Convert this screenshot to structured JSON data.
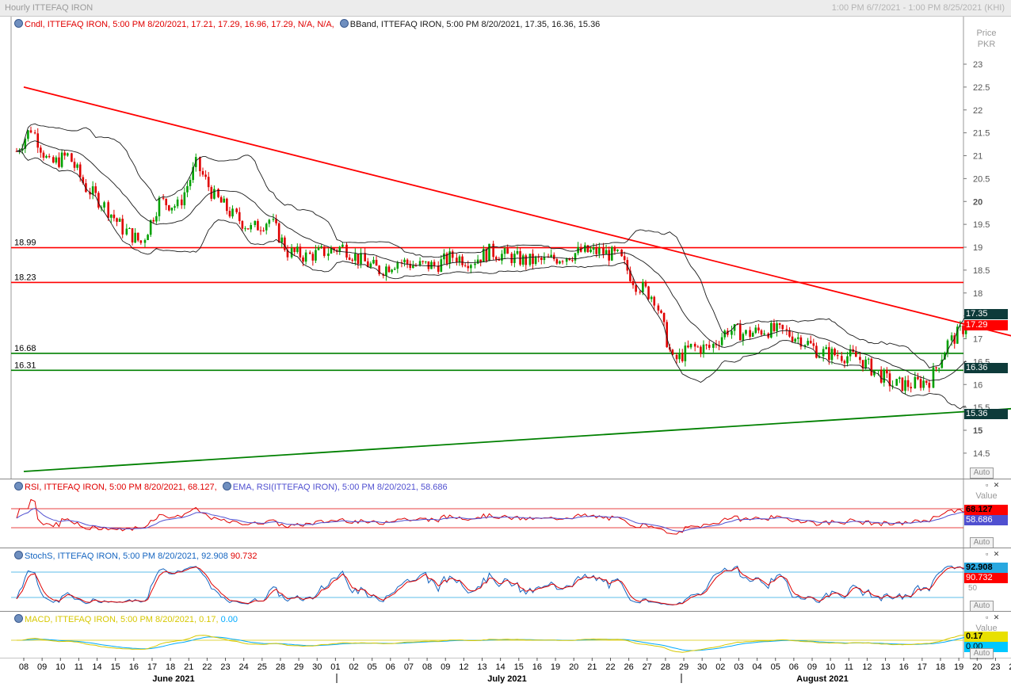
{
  "window": {
    "title": "Hourly ITTEFAQ IRON",
    "date_range": "1:00 PM 6/7/2021 - 1:00 PM 8/25/2021 (KHI)"
  },
  "price_pane": {
    "legend_cndl": "Cndl, ITTEFAQ IRON, 5:00 PM 8/20/2021, 17.21, 17.29, 16.96, 17.29, N/A, N/A,",
    "legend_bband": "BBand, ITTEFAQ IRON, 5:00 PM 8/20/2021, 17.35, 16.36, 15.36",
    "axis_title": [
      "Price",
      "PKR"
    ],
    "ticks": [
      "23",
      "22.5",
      "22",
      "21.5",
      "21",
      "20.5",
      "20",
      "19.5",
      "19",
      "18.5",
      "18",
      "17.5",
      "17",
      "16.5",
      "16",
      "15.5",
      "15",
      "14.5"
    ],
    "level_labels": [
      "18.99",
      "18.23",
      "16.68",
      "16.31"
    ],
    "badges": {
      "bb_upper": "17.35",
      "last": "17.29",
      "bb_mid": "16.36",
      "bb_lower": "15.36"
    },
    "auto_label": "Auto"
  },
  "rsi_pane": {
    "legend_rsi": "RSI, ITTEFAQ IRON, 5:00 PM 8/20/2021, 68.127,",
    "legend_ema": "EMA, RSI(ITTEFAQ IRON), 5:00 PM 8/20/2021, 58.686",
    "axis_title": "Value",
    "badges": {
      "rsi": "68.127",
      "ema": "58.686"
    },
    "auto_label": "Auto"
  },
  "stoch_pane": {
    "legend": "StochS, ITTEFAQ IRON, 5:00 PM 8/20/2021,",
    "k": "92.908",
    "d": "90.732",
    "tick": "50",
    "badges": {
      "k": "92.908",
      "d": "90.732"
    },
    "auto_label": "Auto"
  },
  "macd_pane": {
    "legend": "MACD, ITTEFAQ IRON, 5:00 PM 8/20/2021,",
    "macd": "0.17,",
    "signal": "0.00",
    "axis_title": "Value",
    "badges": {
      "macd": "0.17",
      "signal": "0.00"
    },
    "auto_label": "Auto"
  },
  "x_axis": {
    "days": [
      "08",
      "09",
      "10",
      "11",
      "14",
      "15",
      "16",
      "17",
      "18",
      "21",
      "22",
      "23",
      "24",
      "25",
      "28",
      "29",
      "30",
      "01",
      "02",
      "05",
      "06",
      "07",
      "08",
      "09",
      "12",
      "13",
      "14",
      "15",
      "16",
      "19",
      "20",
      "21",
      "22",
      "26",
      "27",
      "28",
      "29",
      "30",
      "02",
      "03",
      "04",
      "05",
      "06",
      "09",
      "10",
      "11",
      "12",
      "13",
      "16",
      "17",
      "18",
      "19",
      "20",
      "23",
      "24",
      "25"
    ],
    "months": [
      "June 2021",
      "July 2021",
      "August 2021"
    ]
  },
  "colors": {
    "up": "#00a000",
    "down": "#e00000",
    "bband": "#1a1a1a",
    "resistance": "#ff0000",
    "support": "#008000",
    "rsi": "#e00000",
    "ema": "#5050d0",
    "stoch_k": "#1565c0",
    "stoch_d": "#e00000",
    "macd": "#00aaff",
    "signal": "#d7c800"
  },
  "chart_data": {
    "type": "candlestick",
    "y_range": [
      14.2,
      23.4
    ],
    "levels": [
      18.99,
      18.23,
      16.68,
      16.31
    ],
    "x_range": [
      "2021-06-07",
      "2021-08-25"
    ],
    "trendlines": [
      {
        "from": [
          "2021-06-08",
          22.5
        ],
        "to": [
          "2021-08-25",
          16.95
        ]
      },
      {
        "from": [
          "2021-06-08",
          14.1
        ],
        "to": [
          "2021-08-25",
          15.5
        ]
      }
    ],
    "daily_close": [
      [
        "2021-06-08",
        21.6
      ],
      [
        "2021-06-09",
        20.8
      ],
      [
        "2021-06-10",
        21.0
      ],
      [
        "2021-06-11",
        20.3
      ],
      [
        "2021-06-14",
        19.9
      ],
      [
        "2021-06-15",
        19.4
      ],
      [
        "2021-06-16",
        19.1
      ],
      [
        "2021-06-17",
        20.0
      ],
      [
        "2021-06-18",
        19.9
      ],
      [
        "2021-06-21",
        20.8
      ],
      [
        "2021-06-22",
        20.1
      ],
      [
        "2021-06-23",
        19.7
      ],
      [
        "2021-06-24",
        19.4
      ],
      [
        "2021-06-25",
        19.6
      ],
      [
        "2021-06-28",
        18.9
      ],
      [
        "2021-06-29",
        18.8
      ],
      [
        "2021-06-30",
        18.9
      ],
      [
        "2021-07-01",
        19.0
      ],
      [
        "2021-07-02",
        18.7
      ],
      [
        "2021-07-05",
        18.5
      ],
      [
        "2021-07-06",
        18.7
      ],
      [
        "2021-07-07",
        18.6
      ],
      [
        "2021-07-08",
        18.6
      ],
      [
        "2021-07-09",
        18.8
      ],
      [
        "2021-07-12",
        18.7
      ],
      [
        "2021-07-13",
        18.9
      ],
      [
        "2021-07-14",
        18.8
      ],
      [
        "2021-07-15",
        18.7
      ],
      [
        "2021-07-16",
        18.7
      ],
      [
        "2021-07-19",
        18.8
      ],
      [
        "2021-07-20",
        18.9
      ],
      [
        "2021-07-22",
        18.9
      ],
      [
        "2021-07-26",
        18.8
      ],
      [
        "2021-07-27",
        18.2
      ],
      [
        "2021-07-28",
        17.9
      ],
      [
        "2021-07-29",
        16.5
      ],
      [
        "2021-07-30",
        16.8
      ],
      [
        "2021-08-02",
        16.8
      ],
      [
        "2021-08-03",
        17.2
      ],
      [
        "2021-08-04",
        17.1
      ],
      [
        "2021-08-05",
        17.2
      ],
      [
        "2021-08-06",
        17.15
      ],
      [
        "2021-08-09",
        17.0
      ],
      [
        "2021-08-10",
        16.7
      ],
      [
        "2021-08-11",
        16.65
      ],
      [
        "2021-08-12",
        16.6
      ],
      [
        "2021-08-13",
        16.3
      ],
      [
        "2021-08-16",
        16.0
      ],
      [
        "2021-08-17",
        16.0
      ],
      [
        "2021-08-18",
        16.1
      ],
      [
        "2021-08-19",
        16.9
      ],
      [
        "2021-08-20",
        17.29
      ]
    ],
    "last_candle": {
      "time": "2021-08-20 17:00",
      "open": 17.21,
      "high": 17.29,
      "low": 16.96,
      "close": 17.29
    },
    "bband_last": {
      "upper": 17.35,
      "middle": 16.36,
      "lower": 15.36
    },
    "rsi_last": 68.127,
    "rsi_ema_last": 58.686,
    "stoch_last": {
      "k": 92.908,
      "d": 90.732
    },
    "macd_last": {
      "macd": 0.17,
      "signal": 0.0
    }
  }
}
